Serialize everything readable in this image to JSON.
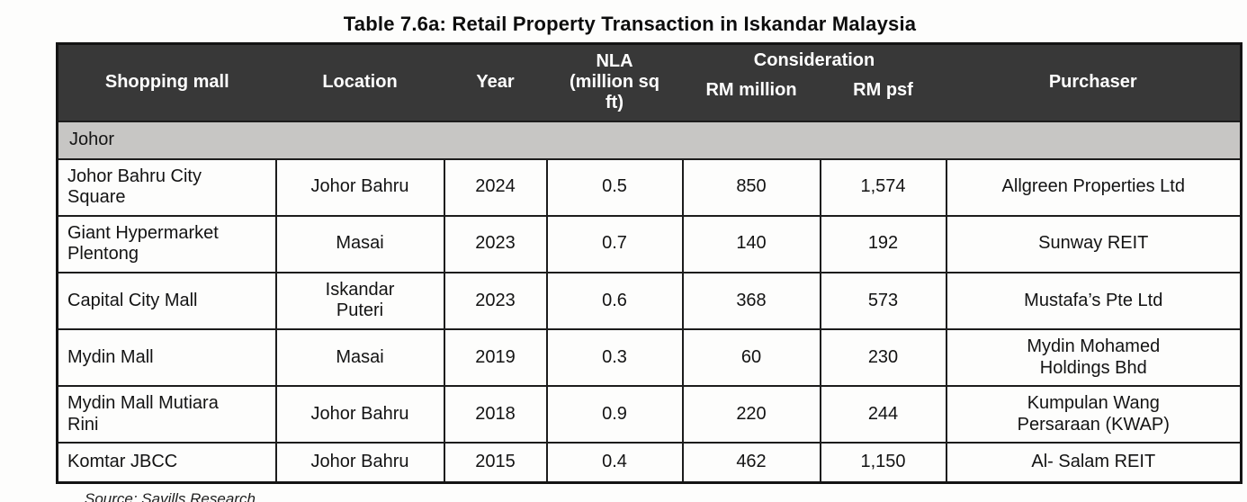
{
  "title": "Table 7.6a: Retail Property Transaction in Iskandar Malaysia",
  "table": {
    "header": {
      "shopping_mall": "Shopping mall",
      "location": "Location",
      "year": "Year",
      "nla": "NLA\n(million sq\nft)",
      "consideration": "Consideration",
      "rm_million": "RM million",
      "rm_psf": "RM psf",
      "purchaser": "Purchaser"
    },
    "section_label": "Johor",
    "rows": [
      [
        "Johor Bahru City\nSquare",
        "Johor Bahru",
        "2024",
        "0.5",
        "850",
        "1,574",
        "Allgreen Properties Ltd"
      ],
      [
        "Giant Hypermarket\nPlentong",
        "Masai",
        "2023",
        "0.7",
        "140",
        "192",
        "Sunway REIT"
      ],
      [
        "Capital City Mall",
        "Iskandar\nPuteri",
        "2023",
        "0.6",
        "368",
        "573",
        "Mustafa’s Pte Ltd"
      ],
      [
        "Mydin Mall",
        "Masai",
        "2019",
        "0.3",
        "60",
        "230",
        "Mydin Mohamed\nHoldings Bhd"
      ],
      [
        "Mydin Mall Mutiara\nRini",
        "Johor Bahru",
        "2018",
        "0.9",
        "220",
        "244",
        "Kumpulan Wang\nPersaraan (KWAP)"
      ],
      [
        "Komtar JBCC",
        "Johor Bahru",
        "2015",
        "0.4",
        "462",
        "1,150",
        "Al- Salam REIT"
      ]
    ]
  },
  "source": "Source: Savills Research",
  "colors": {
    "header_bg": "#383838",
    "header_text": "#ffffff",
    "section_bg": "#c7c6c4",
    "border": "#1c1c1c"
  }
}
